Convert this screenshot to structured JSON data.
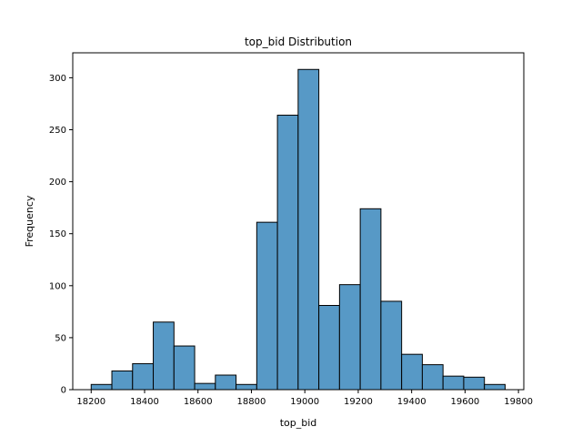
{
  "chart_data": {
    "type": "bar",
    "title": "top_bid Distribution",
    "xlabel": "top_bid",
    "ylabel": "Frequency",
    "xlim": [
      18131,
      19820
    ],
    "ylim": [
      0,
      324
    ],
    "xticks": [
      18200,
      18400,
      18600,
      18800,
      19000,
      19200,
      19400,
      19600,
      19800
    ],
    "yticks": [
      0,
      50,
      100,
      150,
      200,
      250,
      300
    ],
    "bin_edges": [
      18200,
      18277.5,
      18355,
      18432.5,
      18510,
      18587.5,
      18665,
      18742.5,
      18820,
      18897.5,
      18975,
      19052.5,
      19130,
      19207.5,
      19285,
      19362.5,
      19440,
      19517.5,
      19595,
      19672.5,
      19750
    ],
    "values": [
      5,
      18,
      25,
      65,
      42,
      6,
      14,
      5,
      161,
      264,
      308,
      81,
      101,
      174,
      85,
      34,
      24,
      13,
      12,
      5
    ],
    "bar_color": "#5799c6",
    "edge_color": "#000000",
    "grid": false,
    "legend": "none"
  }
}
